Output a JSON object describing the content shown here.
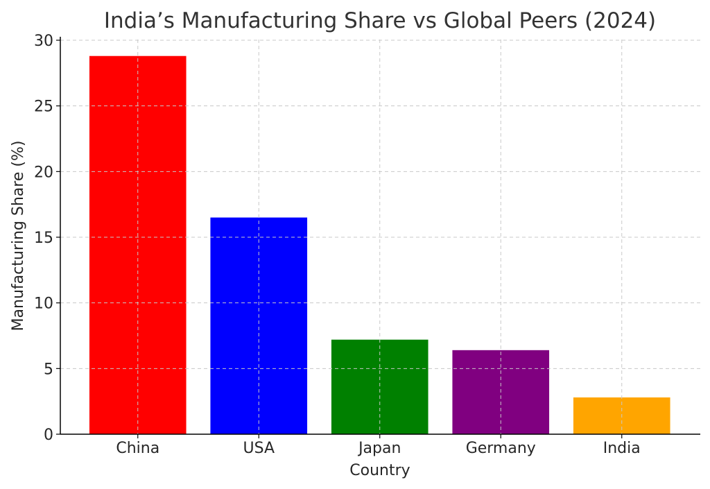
{
  "chart_data": {
    "type": "bar",
    "title": "India’s Manufacturing Share vs Global Peers (2024)",
    "xlabel": "Country",
    "ylabel": "Manufacturing Share (%)",
    "categories": [
      "China",
      "USA",
      "Japan",
      "Germany",
      "India"
    ],
    "values": [
      28.8,
      16.5,
      7.2,
      6.4,
      2.8
    ],
    "colors": [
      "#ff0000",
      "#0000ff",
      "#008000",
      "#800080",
      "#ffa500"
    ],
    "ylim": [
      0,
      30
    ],
    "yticks": [
      0,
      5,
      10,
      15,
      20,
      25,
      30
    ],
    "grid": true
  }
}
